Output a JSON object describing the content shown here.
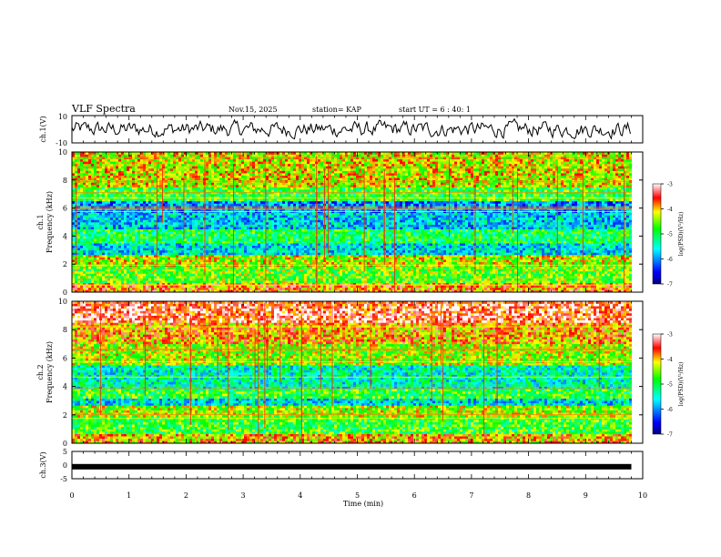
{
  "header": {
    "title": "VLF Spectra",
    "date": "Nov.15, 2025",
    "station": "station= KAP",
    "start_ut": "start  UT =  6 : 40: 1"
  },
  "chart_data": [
    {
      "type": "line",
      "name": "ch1-waveform",
      "ylabel": "ch.1(V)",
      "ylim": [
        -10,
        10
      ],
      "yticks": [
        "10",
        "-10"
      ],
      "xlim": [
        0,
        10
      ],
      "description_values": "noise-like waveform oscillating mostly between -5 and 5 V over 0–9.8 min"
    },
    {
      "type": "heatmap",
      "name": "ch1-spectrogram",
      "ylabel": "ch.1\nFrequency (kHz)",
      "ylabel_lines": [
        "ch.1",
        "Frequency (kHz)"
      ],
      "ylim": [
        0,
        10
      ],
      "yticks": [
        "0",
        "2",
        "4",
        "6",
        "8",
        "10"
      ],
      "xlim": [
        0,
        9.8
      ],
      "colorbar": {
        "label": "log(PSD)(V²/Hz)",
        "range": [
          -7,
          -3
        ],
        "ticks": [
          "-3",
          "-4",
          "-5",
          "-6",
          "-7"
        ]
      },
      "bands": [
        {
          "from": 0,
          "to": 0.6,
          "level": -3.8
        },
        {
          "from": 0.6,
          "to": 1.8,
          "level": -4.6
        },
        {
          "from": 1.8,
          "to": 2.6,
          "level": -4.3
        },
        {
          "from": 2.6,
          "to": 3.4,
          "level": -5.6
        },
        {
          "from": 3.4,
          "to": 4.4,
          "level": -5.0
        },
        {
          "from": 4.4,
          "to": 5.6,
          "level": -5.7
        },
        {
          "from": 5.6,
          "to": 6.4,
          "level": -6.0
        },
        {
          "from": 6.4,
          "to": 7.4,
          "level": -4.8
        },
        {
          "from": 7.4,
          "to": 10,
          "level": -4.2
        }
      ]
    },
    {
      "type": "heatmap",
      "name": "ch2-spectrogram",
      "ylabel_lines": [
        "ch.2",
        "Frequency (kHz)"
      ],
      "ylim": [
        0,
        10
      ],
      "yticks": [
        "0",
        "2",
        "4",
        "6",
        "8",
        "10"
      ],
      "xlim": [
        0,
        9.8
      ],
      "colorbar": {
        "label": "log(PSD)(V²/Hz)",
        "range": [
          -7,
          -3
        ],
        "ticks": [
          "-3",
          "-4",
          "-5",
          "-6",
          "-7"
        ]
      },
      "bands": [
        {
          "from": 0,
          "to": 0.6,
          "level": -4.0
        },
        {
          "from": 0.6,
          "to": 1.8,
          "level": -4.8
        },
        {
          "from": 1.8,
          "to": 2.6,
          "level": -4.4
        },
        {
          "from": 2.6,
          "to": 3.2,
          "level": -5.6
        },
        {
          "from": 3.2,
          "to": 3.8,
          "level": -4.8
        },
        {
          "from": 3.8,
          "to": 5.4,
          "level": -5.4
        },
        {
          "from": 5.4,
          "to": 7.0,
          "level": -4.4
        },
        {
          "from": 7.0,
          "to": 8.4,
          "level": -3.9
        },
        {
          "from": 8.4,
          "to": 10,
          "level": -3.4
        }
      ]
    },
    {
      "type": "line",
      "name": "ch3-waveform",
      "ylabel": "ch.3(V)",
      "ylim": [
        -5,
        5
      ],
      "yticks": [
        "5",
        "0",
        "-5"
      ],
      "xlabel": "Time  (min)",
      "xlim": [
        0,
        10
      ],
      "xticks": [
        "0",
        "1",
        "2",
        "3",
        "4",
        "5",
        "6",
        "7",
        "8",
        "9",
        "10"
      ],
      "level": -0.6
    }
  ]
}
